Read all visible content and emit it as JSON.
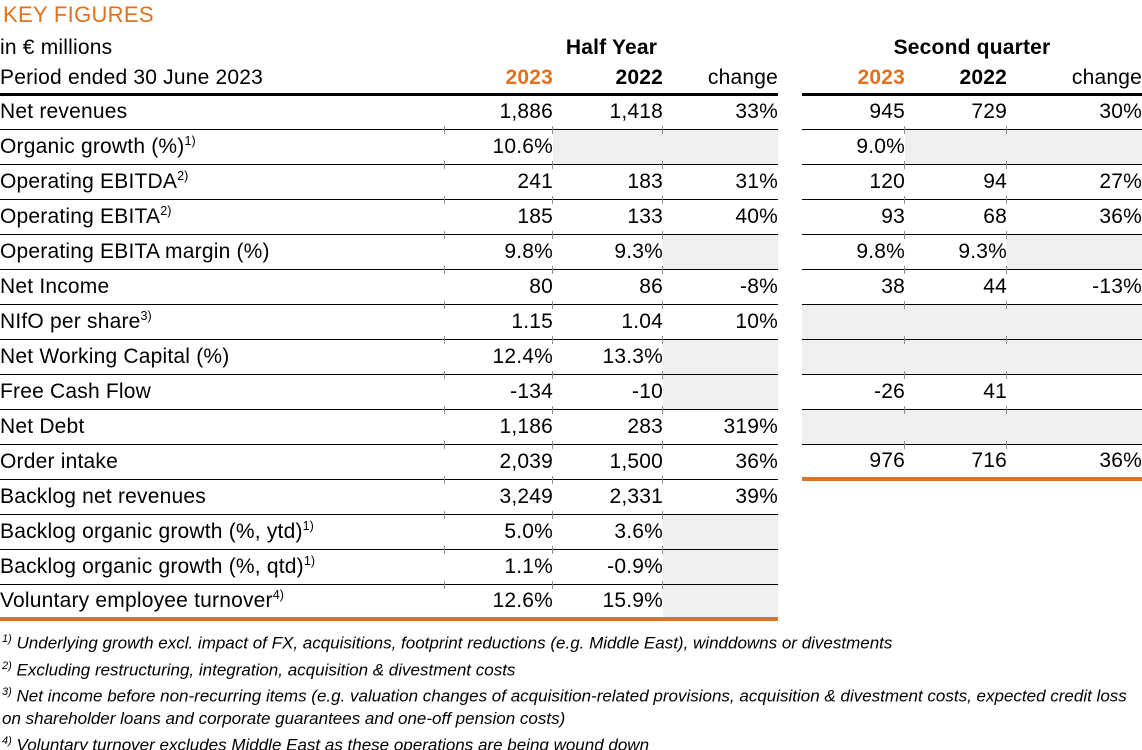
{
  "title": "KEY FIGURES",
  "subtitle": "in € millions",
  "period_label": "Period ended 30 June 2023",
  "group_headers": {
    "half_year": "Half Year",
    "second_quarter": "Second quarter"
  },
  "column_headers": {
    "y2023": "2023",
    "y2022": "2022",
    "change": "change"
  },
  "colors": {
    "accent_orange": "#E2711D",
    "rule_orange": "#DD7327",
    "shaded_cell": "#EFEFEF"
  },
  "table": {
    "rows": [
      {
        "label": "Net revenues",
        "sup": "",
        "hy": [
          "1,886",
          "1,418",
          "33%"
        ],
        "hy_shaded": [
          false,
          false,
          false
        ],
        "q2_present": true,
        "q2": [
          "945",
          "729",
          "30%"
        ],
        "q2_shaded": [
          false,
          false,
          false
        ],
        "hy_last": false,
        "q2_last": false
      },
      {
        "label": "Organic growth (%)",
        "sup": "1)",
        "hy": [
          "10.6%",
          "",
          ""
        ],
        "hy_shaded": [
          false,
          true,
          true
        ],
        "q2_present": true,
        "q2": [
          "9.0%",
          "",
          ""
        ],
        "q2_shaded": [
          false,
          true,
          true
        ],
        "hy_last": false,
        "q2_last": false
      },
      {
        "label": "Operating EBITDA",
        "sup": "2)",
        "hy": [
          "241",
          "183",
          "31%"
        ],
        "hy_shaded": [
          false,
          false,
          false
        ],
        "q2_present": true,
        "q2": [
          "120",
          "94",
          "27%"
        ],
        "q2_shaded": [
          false,
          false,
          false
        ],
        "hy_last": false,
        "q2_last": false
      },
      {
        "label": "Operating EBITA",
        "sup": "2)",
        "hy": [
          "185",
          "133",
          "40%"
        ],
        "hy_shaded": [
          false,
          false,
          false
        ],
        "q2_present": true,
        "q2": [
          "93",
          "68",
          "36%"
        ],
        "q2_shaded": [
          false,
          false,
          false
        ],
        "hy_last": false,
        "q2_last": false
      },
      {
        "label": "Operating EBITA margin (%)",
        "sup": "",
        "hy": [
          "9.8%",
          "9.3%",
          ""
        ],
        "hy_shaded": [
          false,
          false,
          true
        ],
        "q2_present": true,
        "q2": [
          "9.8%",
          "9.3%",
          ""
        ],
        "q2_shaded": [
          false,
          false,
          true
        ],
        "hy_last": false,
        "q2_last": false
      },
      {
        "label": "Net Income",
        "sup": "",
        "hy": [
          "80",
          "86",
          "-8%"
        ],
        "hy_shaded": [
          false,
          false,
          false
        ],
        "q2_present": true,
        "q2": [
          "38",
          "44",
          "-13%"
        ],
        "q2_shaded": [
          false,
          false,
          false
        ],
        "hy_last": false,
        "q2_last": false
      },
      {
        "label": "NIfO per share",
        "sup": "3)",
        "hy": [
          "1.15",
          "1.04",
          "10%"
        ],
        "hy_shaded": [
          false,
          false,
          false
        ],
        "q2_present": true,
        "q2": [
          "",
          "",
          ""
        ],
        "q2_shaded": [
          true,
          true,
          true
        ],
        "hy_last": false,
        "q2_last": false
      },
      {
        "label": "Net Working Capital (%)",
        "sup": "",
        "hy": [
          "12.4%",
          "13.3%",
          ""
        ],
        "hy_shaded": [
          false,
          false,
          true
        ],
        "q2_present": true,
        "q2": [
          "",
          "",
          ""
        ],
        "q2_shaded": [
          true,
          true,
          true
        ],
        "hy_last": false,
        "q2_last": false
      },
      {
        "label": "Free Cash Flow",
        "sup": "",
        "hy": [
          "-134",
          "-10",
          ""
        ],
        "hy_shaded": [
          false,
          false,
          true
        ],
        "q2_present": true,
        "q2": [
          "-26",
          "41",
          ""
        ],
        "q2_shaded": [
          false,
          false,
          false
        ],
        "hy_last": false,
        "q2_last": false
      },
      {
        "label": "Net Debt",
        "sup": "",
        "hy": [
          "1,186",
          "283",
          "319%"
        ],
        "hy_shaded": [
          false,
          false,
          false
        ],
        "q2_present": true,
        "q2": [
          "",
          "",
          ""
        ],
        "q2_shaded": [
          true,
          true,
          true
        ],
        "hy_last": false,
        "q2_last": false
      },
      {
        "label": "Order intake",
        "sup": "",
        "hy": [
          "2,039",
          "1,500",
          "36%"
        ],
        "hy_shaded": [
          false,
          false,
          false
        ],
        "q2_present": true,
        "q2": [
          "976",
          "716",
          "36%"
        ],
        "q2_shaded": [
          false,
          false,
          false
        ],
        "hy_last": false,
        "q2_last": true
      },
      {
        "label": "Backlog net revenues",
        "sup": "",
        "hy": [
          "3,249",
          "2,331",
          "39%"
        ],
        "hy_shaded": [
          false,
          false,
          false
        ],
        "q2_present": false,
        "q2": [
          "",
          "",
          ""
        ],
        "q2_shaded": [
          false,
          false,
          false
        ],
        "hy_last": false,
        "q2_last": false
      },
      {
        "label": "Backlog organic growth (%, ytd)",
        "sup": "1)",
        "hy": [
          "5.0%",
          "3.6%",
          ""
        ],
        "hy_shaded": [
          false,
          false,
          true
        ],
        "q2_present": false,
        "q2": [
          "",
          "",
          ""
        ],
        "q2_shaded": [
          false,
          false,
          false
        ],
        "hy_last": false,
        "q2_last": false
      },
      {
        "label": "Backlog organic growth (%, qtd)",
        "sup": "1)",
        "hy": [
          "1.1%",
          "-0.9%",
          ""
        ],
        "hy_shaded": [
          false,
          false,
          true
        ],
        "q2_present": false,
        "q2": [
          "",
          "",
          ""
        ],
        "q2_shaded": [
          false,
          false,
          false
        ],
        "hy_last": false,
        "q2_last": false
      },
      {
        "label": "Voluntary employee turnover",
        "sup": "4)",
        "hy": [
          "12.6%",
          "15.9%",
          ""
        ],
        "hy_shaded": [
          false,
          false,
          true
        ],
        "q2_present": false,
        "q2": [
          "",
          "",
          ""
        ],
        "q2_shaded": [
          false,
          false,
          false
        ],
        "hy_last": true,
        "q2_last": false
      }
    ]
  },
  "footnotes": [
    {
      "marker": "1)",
      "text": "Underlying growth excl. impact of FX, acquisitions, footprint reductions (e.g. Middle East), winddowns or divestments"
    },
    {
      "marker": "2)",
      "text": "Excluding restructuring, integration, acquisition & divestment costs"
    },
    {
      "marker": "3)",
      "text": "Net income before non-recurring items (e.g. valuation changes of acquisition-related provisions, acquisition & divestment costs, expected credit loss on shareholder loans and corporate guarantees and one-off pension costs)"
    },
    {
      "marker": "4)",
      "text": "Voluntary turnover excludes Middle East as these operations are being wound down"
    }
  ]
}
